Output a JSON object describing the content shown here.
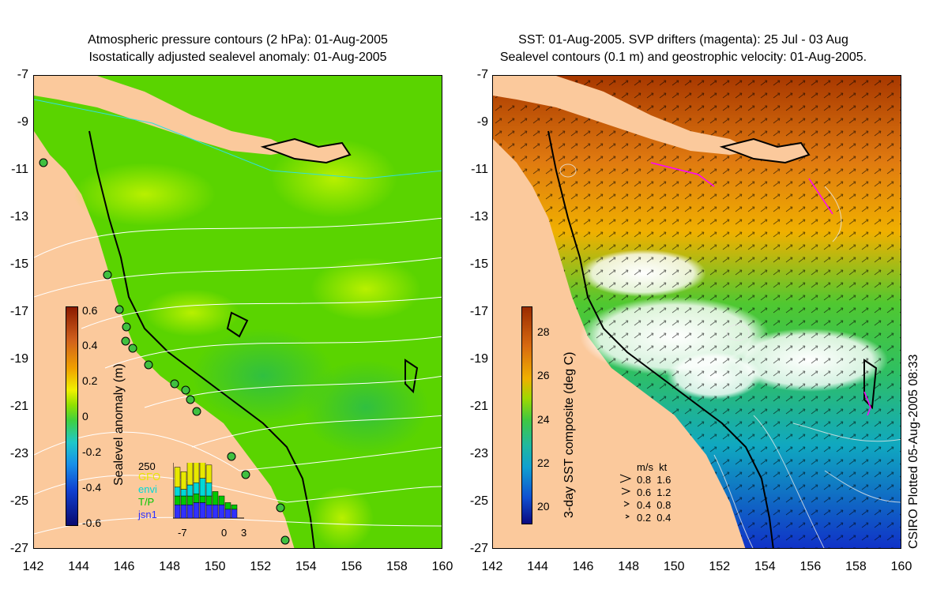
{
  "left_panel": {
    "title_line1": "Atmospheric pressure contours (2 hPa): 01-Aug-2005",
    "title_line2": "Isostatically adjusted sealevel anomaly: 01-Aug-2005",
    "colorbar_label": "Sealevel anomaly (m)",
    "colorbar_ticks": [
      "0.6",
      "0.4",
      "0.2",
      "0",
      "-0.2",
      "-0.4",
      "-0.6"
    ],
    "inset": {
      "ymax_label": "250",
      "legend": [
        {
          "label": "GFO",
          "color": "#e8e800"
        },
        {
          "label": "envi",
          "color": "#00d8d8"
        },
        {
          "label": "T/P",
          "color": "#00c800"
        },
        {
          "label": "jsn1",
          "color": "#3030ff"
        }
      ],
      "x_ticks": [
        "-7",
        "0",
        "3"
      ],
      "bars": [
        {
          "GFO": 90,
          "envi": 40,
          "TP": 40,
          "jsn1": 60
        },
        {
          "GFO": 80,
          "envi": 30,
          "TP": 40,
          "jsn1": 60
        },
        {
          "GFO": 110,
          "envi": 50,
          "TP": 40,
          "jsn1": 60
        },
        {
          "GFO": 100,
          "envi": 50,
          "TP": 40,
          "jsn1": 70
        },
        {
          "GFO": 120,
          "envi": 80,
          "TP": 30,
          "jsn1": 70
        },
        {
          "GFO": 80,
          "envi": 60,
          "TP": 40,
          "jsn1": 60
        },
        {
          "GFO": 0,
          "envi": 0,
          "TP": 60,
          "jsn1": 60
        },
        {
          "GFO": 0,
          "envi": 0,
          "TP": 40,
          "jsn1": 60
        },
        {
          "GFO": 0,
          "envi": 0,
          "TP": 30,
          "jsn1": 40
        },
        {
          "GFO": 0,
          "envi": 0,
          "TP": 20,
          "jsn1": 40
        }
      ]
    }
  },
  "right_panel": {
    "title_line1": "SST: 01-Aug-2005. SVP drifters (magenta): 25 Jul - 03 Aug",
    "title_line2": "Sealevel contours (0.1 m) and geostrophic velocity: 01-Aug-2005.",
    "colorbar_label": "3-day SST composite (deg C)",
    "colorbar_ticks": [
      "28",
      "26",
      "24",
      "22",
      "20"
    ],
    "velocity_legend": {
      "header": "m/s  kt",
      "rows": [
        "0.8  1.6",
        "0.6  1.2",
        "0.4  0.8",
        "0.2  0.4"
      ]
    },
    "plotted_note": "CSIRO Plotted 05-Aug-2005 08:33"
  },
  "axes": {
    "lat_ticks": [
      "-7",
      "-9",
      "-11",
      "-13",
      "-15",
      "-17",
      "-19",
      "-21",
      "-23",
      "-25",
      "-27"
    ],
    "lon_ticks": [
      "142",
      "144",
      "146",
      "148",
      "150",
      "152",
      "154",
      "156",
      "158",
      "160"
    ],
    "lat_range": [
      -27,
      -7
    ],
    "lon_range": [
      142,
      160
    ]
  },
  "colors": {
    "land": "#fbc99c",
    "sla_ocean": "#5ad400",
    "contour_pressure": "#ffffff",
    "contour_cyan": "#30e0e0"
  }
}
